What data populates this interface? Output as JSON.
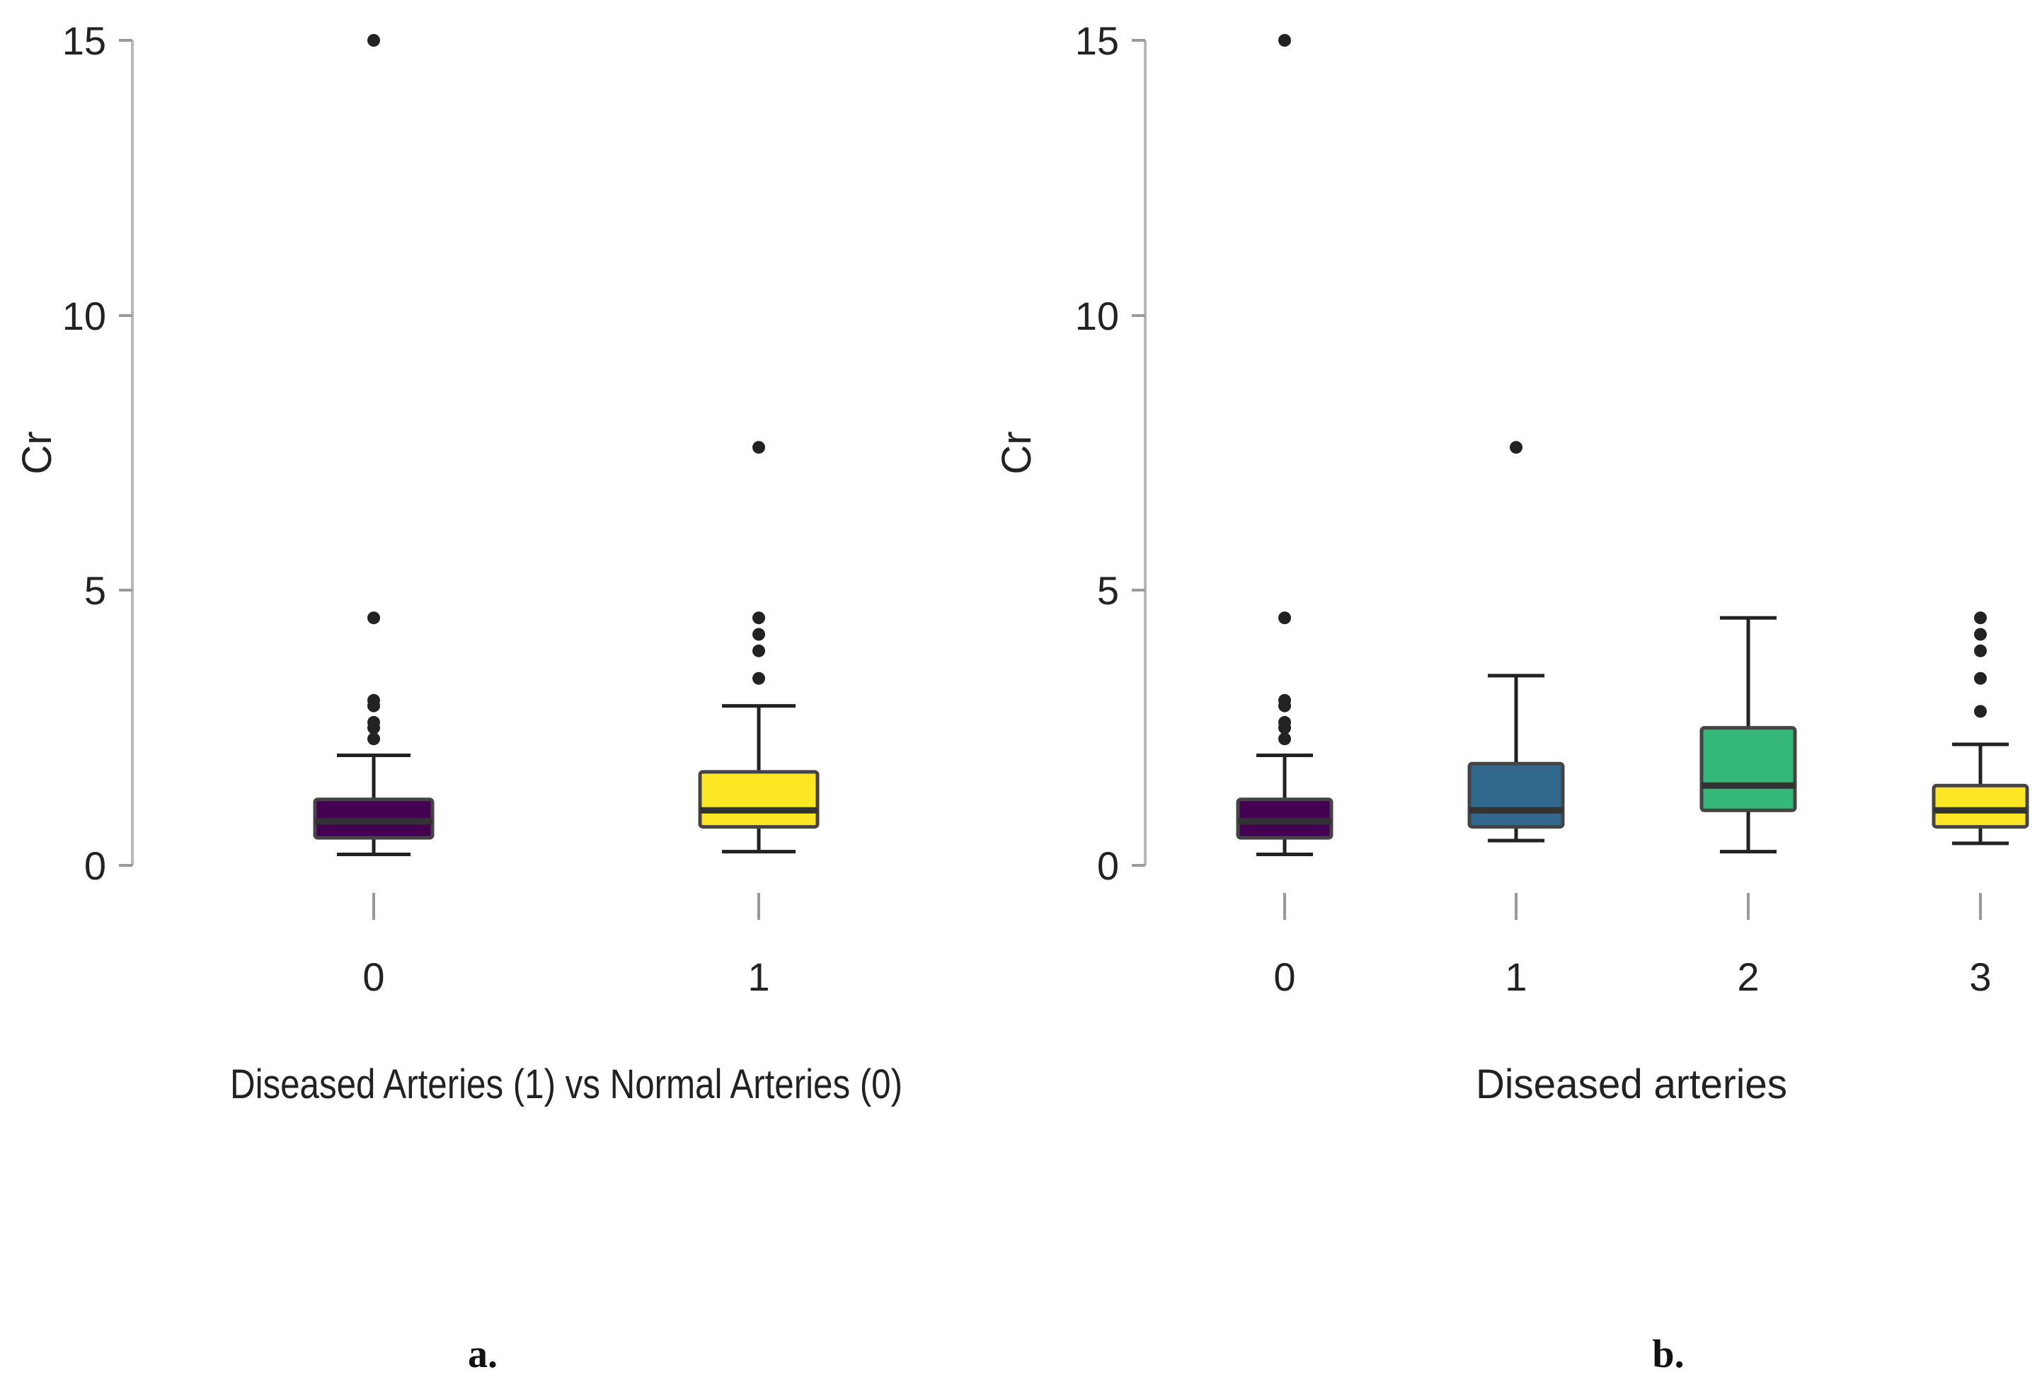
{
  "chart_data": [
    {
      "type": "box",
      "panel_label": "a.",
      "xlabel": "Diseased Arteries (1) vs Normal Arteries (0)",
      "ylabel": "Cr",
      "ylim": [
        0,
        15
      ],
      "yticks": [
        "0",
        "5",
        "10",
        "15"
      ],
      "categories": [
        "0",
        "1"
      ],
      "boxes": [
        {
          "category": "0",
          "fill": "#440154",
          "whisker_low": 0.2,
          "q1": 0.5,
          "median": 0.8,
          "q3": 1.2,
          "whisker_high": 2.0,
          "outliers": [
            2.3,
            2.5,
            2.6,
            2.9,
            3.0,
            4.5,
            15.0
          ]
        },
        {
          "category": "1",
          "fill": "#FDE725",
          "whisker_low": 0.25,
          "q1": 0.7,
          "median": 1.0,
          "q3": 1.7,
          "whisker_high": 2.9,
          "outliers": [
            3.4,
            3.9,
            4.2,
            4.5,
            7.6
          ]
        }
      ]
    },
    {
      "type": "box",
      "panel_label": "b.",
      "xlabel": "Diseased arteries",
      "ylabel": "Cr",
      "ylim": [
        0,
        15
      ],
      "yticks": [
        "0",
        "5",
        "10",
        "15"
      ],
      "categories": [
        "0",
        "1",
        "2",
        "3"
      ],
      "boxes": [
        {
          "category": "0",
          "fill": "#440154",
          "whisker_low": 0.2,
          "q1": 0.5,
          "median": 0.8,
          "q3": 1.2,
          "whisker_high": 2.0,
          "outliers": [
            2.3,
            2.5,
            2.6,
            2.9,
            3.0,
            4.5,
            15.0
          ]
        },
        {
          "category": "1",
          "fill": "#31688E",
          "whisker_low": 0.45,
          "q1": 0.7,
          "median": 1.0,
          "q3": 1.85,
          "whisker_high": 3.45,
          "outliers": [
            7.6
          ]
        },
        {
          "category": "2",
          "fill": "#35B779",
          "whisker_low": 0.25,
          "q1": 1.0,
          "median": 1.45,
          "q3": 2.5,
          "whisker_high": 4.5,
          "outliers": []
        },
        {
          "category": "3",
          "fill": "#FDE725",
          "whisker_low": 0.4,
          "q1": 0.7,
          "median": 1.0,
          "q3": 1.45,
          "whisker_high": 2.2,
          "outliers": [
            2.8,
            3.4,
            3.9,
            4.2,
            4.5
          ]
        }
      ]
    }
  ]
}
